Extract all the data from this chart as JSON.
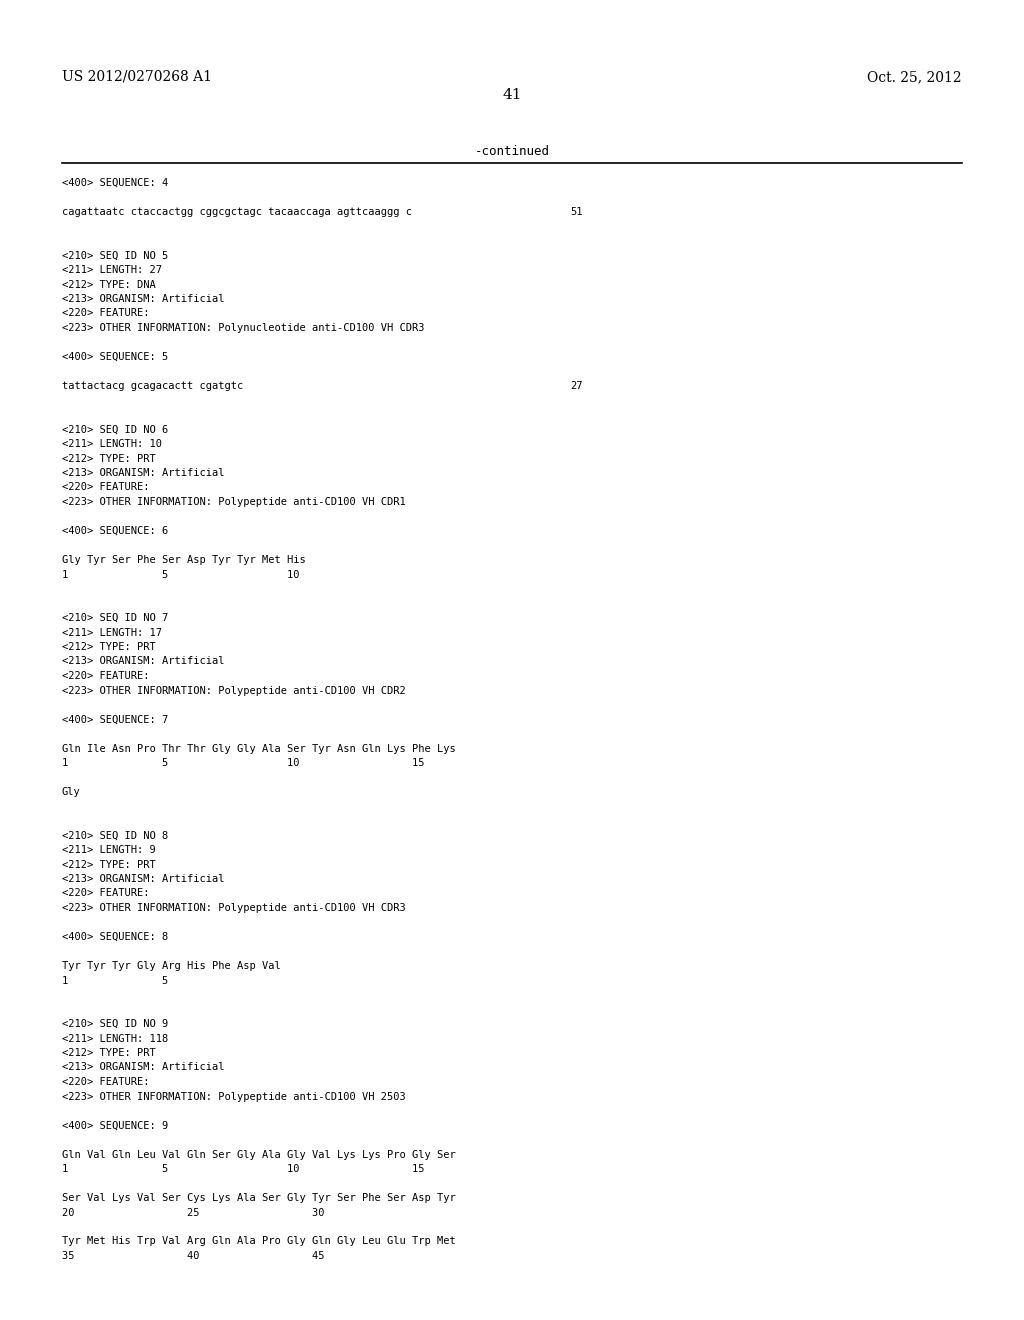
{
  "header_left": "US 2012/0270268 A1",
  "header_right": "Oct. 25, 2012",
  "page_number": "41",
  "continued_text": "-continued",
  "background_color": "#ffffff",
  "text_color": "#000000",
  "content_lines": [
    {
      "text": "<400> SEQUENCE: 4",
      "indent": 0,
      "type": "meta"
    },
    {
      "text": "",
      "indent": 0,
      "type": "blank"
    },
    {
      "text": "cagattaatc ctaccactgg cggcgctagc tacaaccaga agttcaaggg c",
      "indent": 0,
      "type": "seq",
      "num": "51"
    },
    {
      "text": "",
      "indent": 0,
      "type": "blank"
    },
    {
      "text": "",
      "indent": 0,
      "type": "blank"
    },
    {
      "text": "<210> SEQ ID NO 5",
      "indent": 0,
      "type": "meta"
    },
    {
      "text": "<211> LENGTH: 27",
      "indent": 0,
      "type": "meta"
    },
    {
      "text": "<212> TYPE: DNA",
      "indent": 0,
      "type": "meta"
    },
    {
      "text": "<213> ORGANISM: Artificial",
      "indent": 0,
      "type": "meta"
    },
    {
      "text": "<220> FEATURE:",
      "indent": 0,
      "type": "meta"
    },
    {
      "text": "<223> OTHER INFORMATION: Polynucleotide anti-CD100 VH CDR3",
      "indent": 0,
      "type": "meta"
    },
    {
      "text": "",
      "indent": 0,
      "type": "blank"
    },
    {
      "text": "<400> SEQUENCE: 5",
      "indent": 0,
      "type": "meta"
    },
    {
      "text": "",
      "indent": 0,
      "type": "blank"
    },
    {
      "text": "tattactacg gcagacactt cgatgtc",
      "indent": 0,
      "type": "seq",
      "num": "27"
    },
    {
      "text": "",
      "indent": 0,
      "type": "blank"
    },
    {
      "text": "",
      "indent": 0,
      "type": "blank"
    },
    {
      "text": "<210> SEQ ID NO 6",
      "indent": 0,
      "type": "meta"
    },
    {
      "text": "<211> LENGTH: 10",
      "indent": 0,
      "type": "meta"
    },
    {
      "text": "<212> TYPE: PRT",
      "indent": 0,
      "type": "meta"
    },
    {
      "text": "<213> ORGANISM: Artificial",
      "indent": 0,
      "type": "meta"
    },
    {
      "text": "<220> FEATURE:",
      "indent": 0,
      "type": "meta"
    },
    {
      "text": "<223> OTHER INFORMATION: Polypeptide anti-CD100 VH CDR1",
      "indent": 0,
      "type": "meta"
    },
    {
      "text": "",
      "indent": 0,
      "type": "blank"
    },
    {
      "text": "<400> SEQUENCE: 6",
      "indent": 0,
      "type": "meta"
    },
    {
      "text": "",
      "indent": 0,
      "type": "blank"
    },
    {
      "text": "Gly Tyr Ser Phe Ser Asp Tyr Tyr Met His",
      "indent": 0,
      "type": "seq",
      "num": ""
    },
    {
      "text": "1               5                   10",
      "indent": 0,
      "type": "ruler"
    },
    {
      "text": "",
      "indent": 0,
      "type": "blank"
    },
    {
      "text": "",
      "indent": 0,
      "type": "blank"
    },
    {
      "text": "<210> SEQ ID NO 7",
      "indent": 0,
      "type": "meta"
    },
    {
      "text": "<211> LENGTH: 17",
      "indent": 0,
      "type": "meta"
    },
    {
      "text": "<212> TYPE: PRT",
      "indent": 0,
      "type": "meta"
    },
    {
      "text": "<213> ORGANISM: Artificial",
      "indent": 0,
      "type": "meta"
    },
    {
      "text": "<220> FEATURE:",
      "indent": 0,
      "type": "meta"
    },
    {
      "text": "<223> OTHER INFORMATION: Polypeptide anti-CD100 VH CDR2",
      "indent": 0,
      "type": "meta"
    },
    {
      "text": "",
      "indent": 0,
      "type": "blank"
    },
    {
      "text": "<400> SEQUENCE: 7",
      "indent": 0,
      "type": "meta"
    },
    {
      "text": "",
      "indent": 0,
      "type": "blank"
    },
    {
      "text": "Gln Ile Asn Pro Thr Thr Gly Gly Ala Ser Tyr Asn Gln Lys Phe Lys",
      "indent": 0,
      "type": "seq",
      "num": ""
    },
    {
      "text": "1               5                   10                  15",
      "indent": 0,
      "type": "ruler"
    },
    {
      "text": "",
      "indent": 0,
      "type": "blank"
    },
    {
      "text": "Gly",
      "indent": 0,
      "type": "seq",
      "num": ""
    },
    {
      "text": "",
      "indent": 0,
      "type": "blank"
    },
    {
      "text": "",
      "indent": 0,
      "type": "blank"
    },
    {
      "text": "<210> SEQ ID NO 8",
      "indent": 0,
      "type": "meta"
    },
    {
      "text": "<211> LENGTH: 9",
      "indent": 0,
      "type": "meta"
    },
    {
      "text": "<212> TYPE: PRT",
      "indent": 0,
      "type": "meta"
    },
    {
      "text": "<213> ORGANISM: Artificial",
      "indent": 0,
      "type": "meta"
    },
    {
      "text": "<220> FEATURE:",
      "indent": 0,
      "type": "meta"
    },
    {
      "text": "<223> OTHER INFORMATION: Polypeptide anti-CD100 VH CDR3",
      "indent": 0,
      "type": "meta"
    },
    {
      "text": "",
      "indent": 0,
      "type": "blank"
    },
    {
      "text": "<400> SEQUENCE: 8",
      "indent": 0,
      "type": "meta"
    },
    {
      "text": "",
      "indent": 0,
      "type": "blank"
    },
    {
      "text": "Tyr Tyr Tyr Gly Arg His Phe Asp Val",
      "indent": 0,
      "type": "seq",
      "num": ""
    },
    {
      "text": "1               5",
      "indent": 0,
      "type": "ruler"
    },
    {
      "text": "",
      "indent": 0,
      "type": "blank"
    },
    {
      "text": "",
      "indent": 0,
      "type": "blank"
    },
    {
      "text": "<210> SEQ ID NO 9",
      "indent": 0,
      "type": "meta"
    },
    {
      "text": "<211> LENGTH: 118",
      "indent": 0,
      "type": "meta"
    },
    {
      "text": "<212> TYPE: PRT",
      "indent": 0,
      "type": "meta"
    },
    {
      "text": "<213> ORGANISM: Artificial",
      "indent": 0,
      "type": "meta"
    },
    {
      "text": "<220> FEATURE:",
      "indent": 0,
      "type": "meta"
    },
    {
      "text": "<223> OTHER INFORMATION: Polypeptide anti-CD100 VH 2503",
      "indent": 0,
      "type": "meta"
    },
    {
      "text": "",
      "indent": 0,
      "type": "blank"
    },
    {
      "text": "<400> SEQUENCE: 9",
      "indent": 0,
      "type": "meta"
    },
    {
      "text": "",
      "indent": 0,
      "type": "blank"
    },
    {
      "text": "Gln Val Gln Leu Val Gln Ser Gly Ala Gly Val Lys Lys Pro Gly Ser",
      "indent": 0,
      "type": "seq",
      "num": ""
    },
    {
      "text": "1               5                   10                  15",
      "indent": 0,
      "type": "ruler"
    },
    {
      "text": "",
      "indent": 0,
      "type": "blank"
    },
    {
      "text": "Ser Val Lys Val Ser Cys Lys Ala Ser Gly Tyr Ser Phe Ser Asp Tyr",
      "indent": 0,
      "type": "seq",
      "num": ""
    },
    {
      "text": "20                  25                  30",
      "indent": 0,
      "type": "ruler"
    },
    {
      "text": "",
      "indent": 0,
      "type": "blank"
    },
    {
      "text": "Tyr Met His Trp Val Arg Gln Ala Pro Gly Gln Gly Leu Glu Trp Met",
      "indent": 0,
      "type": "seq",
      "num": ""
    },
    {
      "text": "35                  40                  45",
      "indent": 0,
      "type": "ruler"
    }
  ]
}
